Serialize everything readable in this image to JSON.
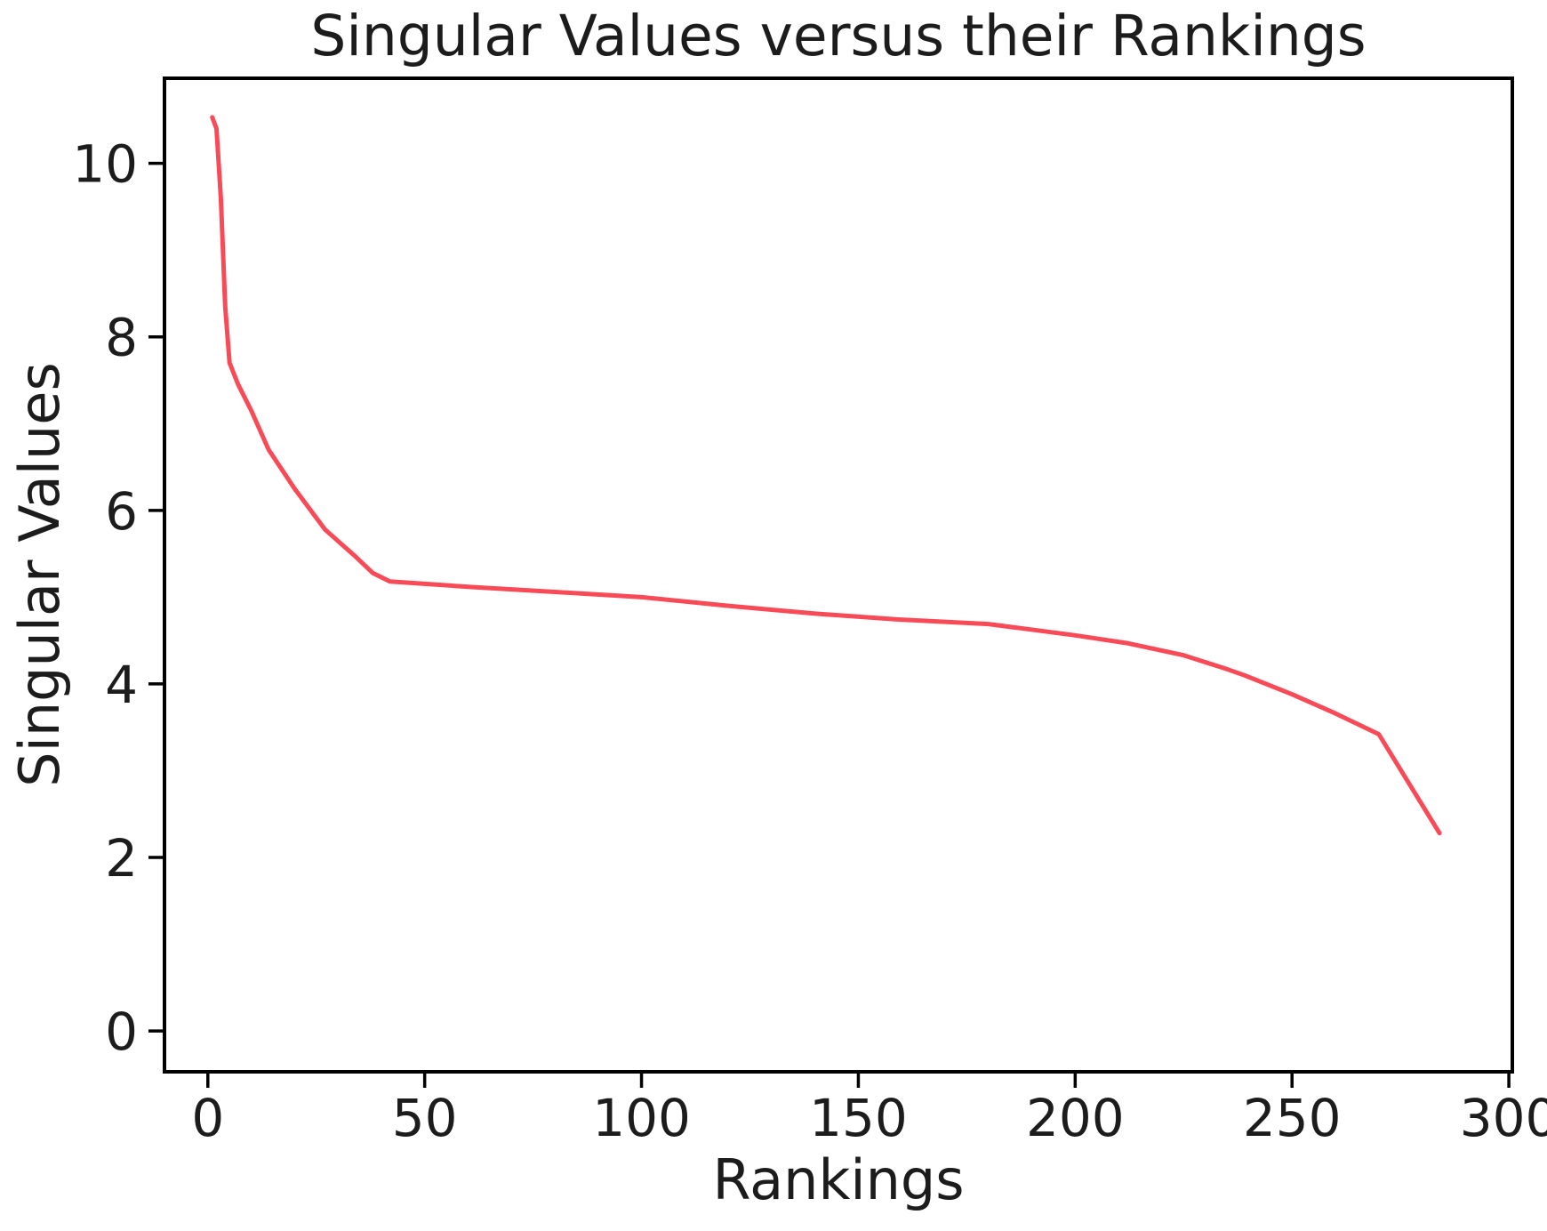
{
  "chart_data": {
    "type": "line",
    "title": "Singular Values versus their Rankings",
    "xlabel": "Rankings",
    "ylabel": "Singular Values",
    "xlim": [
      -10,
      300.8
    ],
    "ylim": [
      -0.47,
      10.98
    ],
    "x_ticks": [
      0,
      50,
      100,
      150,
      200,
      250,
      300
    ],
    "y_ticks": [
      0,
      2,
      4,
      6,
      8,
      10
    ],
    "grid": false,
    "legend": null,
    "line_color": "#f94b57",
    "line_width": 5,
    "axis_color": "#000000",
    "text_color": "#1c1c1c",
    "background_color": "#ffffff",
    "series": [
      {
        "name": "Singular Values",
        "x": [
          1,
          2,
          3,
          4,
          5,
          7,
          10,
          14,
          20,
          27,
          34,
          38,
          42,
          60,
          80,
          100,
          120,
          140,
          160,
          180,
          200,
          212,
          225,
          235,
          239,
          250,
          260,
          270,
          284
        ],
        "y": [
          10.53,
          10.4,
          9.6,
          8.35,
          7.7,
          7.45,
          7.15,
          6.7,
          6.25,
          5.78,
          5.47,
          5.28,
          5.18,
          5.12,
          5.06,
          5.0,
          4.9,
          4.81,
          4.74,
          4.69,
          4.56,
          4.47,
          4.33,
          4.17,
          4.1,
          3.88,
          3.66,
          3.42,
          2.28
        ]
      }
    ]
  }
}
